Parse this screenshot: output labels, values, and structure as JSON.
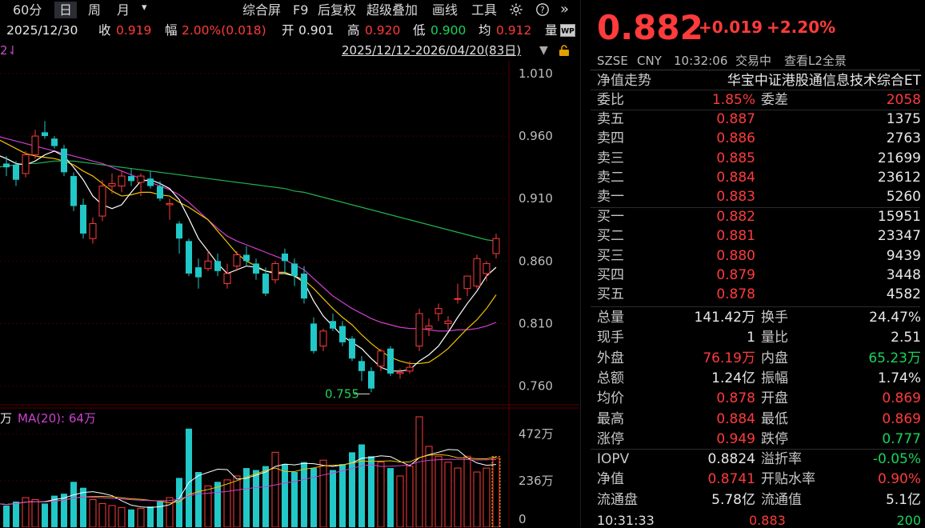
{
  "toolbar": {
    "periods": [
      {
        "label": "60分",
        "active": false
      },
      {
        "label": "日",
        "active": true
      },
      {
        "label": "周",
        "active": false
      },
      {
        "label": "月",
        "active": false
      }
    ],
    "right_items": [
      "综合屏",
      "F9",
      "后复权",
      "超级叠加",
      "画线",
      "工具"
    ]
  },
  "info": {
    "date": "2025/12/30",
    "close_label": "收",
    "close": "0.919",
    "range_label": "幅",
    "range": "2.00%(0.018)",
    "open_label": "开",
    "open": "0.901",
    "high_label": "高",
    "high": "0.920",
    "low_label": "低",
    "low": "0.900",
    "avg_label": "均",
    "avg": "0.912",
    "vol_label": "量"
  },
  "range_row": {
    "left_marker": "2⇃",
    "date_range": "2025/12/12-2026/04/20(83日)"
  },
  "volume_legend": {
    "prefix": "万",
    "ma": "MA(20): 64万"
  },
  "colors": {
    "up": "#ff3b3b",
    "down": "#22c7c7",
    "ma5": "#ffffff",
    "ma10": "#f0c000",
    "ma20": "#d040d0",
    "ma60": "#20b050",
    "grid": "#3a0000"
  },
  "chart_data": {
    "type": "candlestick",
    "y_ticks": [
      "1.010",
      "0.960",
      "0.910",
      "0.860",
      "0.810",
      "0.760"
    ],
    "ylim": [
      0.745,
      1.017
    ],
    "low_annotation": "0.755",
    "volume_ticks": [
      "472万",
      "236万",
      "0"
    ],
    "volume_ylim": [
      0,
      560
    ],
    "candles": [
      {
        "o": 0.94,
        "h": 0.945,
        "l": 0.932,
        "c": 0.938
      },
      {
        "o": 0.938,
        "h": 0.944,
        "l": 0.928,
        "c": 0.935
      },
      {
        "o": 0.937,
        "h": 0.94,
        "l": 0.92,
        "c": 0.925
      },
      {
        "o": 0.93,
        "h": 0.948,
        "l": 0.927,
        "c": 0.945
      },
      {
        "o": 0.945,
        "h": 0.965,
        "l": 0.942,
        "c": 0.96
      },
      {
        "o": 0.963,
        "h": 0.972,
        "l": 0.958,
        "c": 0.96
      },
      {
        "o": 0.958,
        "h": 0.96,
        "l": 0.95,
        "c": 0.952
      },
      {
        "o": 0.95,
        "h": 0.953,
        "l": 0.928,
        "c": 0.931
      },
      {
        "o": 0.928,
        "h": 0.931,
        "l": 0.9,
        "c": 0.904
      },
      {
        "o": 0.905,
        "h": 0.91,
        "l": 0.878,
        "c": 0.882
      },
      {
        "o": 0.878,
        "h": 0.895,
        "l": 0.874,
        "c": 0.89
      },
      {
        "o": 0.896,
        "h": 0.925,
        "l": 0.892,
        "c": 0.92
      },
      {
        "o": 0.92,
        "h": 0.93,
        "l": 0.914,
        "c": 0.922
      },
      {
        "o": 0.92,
        "h": 0.932,
        "l": 0.915,
        "c": 0.928
      },
      {
        "o": 0.928,
        "h": 0.934,
        "l": 0.92,
        "c": 0.924
      },
      {
        "o": 0.923,
        "h": 0.93,
        "l": 0.912,
        "c": 0.928
      },
      {
        "o": 0.926,
        "h": 0.932,
        "l": 0.918,
        "c": 0.92
      },
      {
        "o": 0.92,
        "h": 0.924,
        "l": 0.908,
        "c": 0.91
      },
      {
        "o": 0.905,
        "h": 0.91,
        "l": 0.893,
        "c": 0.906
      },
      {
        "o": 0.89,
        "h": 0.892,
        "l": 0.866,
        "c": 0.878
      },
      {
        "o": 0.876,
        "h": 0.878,
        "l": 0.848,
        "c": 0.85
      },
      {
        "o": 0.855,
        "h": 0.862,
        "l": 0.838,
        "c": 0.847
      },
      {
        "o": 0.854,
        "h": 0.868,
        "l": 0.852,
        "c": 0.86
      },
      {
        "o": 0.86,
        "h": 0.866,
        "l": 0.848,
        "c": 0.852
      },
      {
        "o": 0.842,
        "h": 0.858,
        "l": 0.838,
        "c": 0.85
      },
      {
        "o": 0.856,
        "h": 0.868,
        "l": 0.852,
        "c": 0.865
      },
      {
        "o": 0.865,
        "h": 0.872,
        "l": 0.856,
        "c": 0.86
      },
      {
        "o": 0.858,
        "h": 0.862,
        "l": 0.845,
        "c": 0.85
      },
      {
        "o": 0.85,
        "h": 0.855,
        "l": 0.832,
        "c": 0.834
      },
      {
        "o": 0.845,
        "h": 0.86,
        "l": 0.842,
        "c": 0.858
      },
      {
        "o": 0.866,
        "h": 0.87,
        "l": 0.85,
        "c": 0.86
      },
      {
        "o": 0.858,
        "h": 0.862,
        "l": 0.84,
        "c": 0.848
      },
      {
        "o": 0.85,
        "h": 0.856,
        "l": 0.826,
        "c": 0.83
      },
      {
        "o": 0.81,
        "h": 0.815,
        "l": 0.786,
        "c": 0.788
      },
      {
        "o": 0.792,
        "h": 0.806,
        "l": 0.788,
        "c": 0.804
      },
      {
        "o": 0.812,
        "h": 0.818,
        "l": 0.804,
        "c": 0.806
      },
      {
        "o": 0.808,
        "h": 0.812,
        "l": 0.792,
        "c": 0.795
      },
      {
        "o": 0.798,
        "h": 0.8,
        "l": 0.78,
        "c": 0.782
      },
      {
        "o": 0.78,
        "h": 0.784,
        "l": 0.764,
        "c": 0.772
      },
      {
        "o": 0.772,
        "h": 0.775,
        "l": 0.755,
        "c": 0.758
      },
      {
        "o": 0.776,
        "h": 0.79,
        "l": 0.772,
        "c": 0.788
      },
      {
        "o": 0.79,
        "h": 0.792,
        "l": 0.768,
        "c": 0.77
      },
      {
        "o": 0.77,
        "h": 0.774,
        "l": 0.766,
        "c": 0.771
      },
      {
        "o": 0.772,
        "h": 0.78,
        "l": 0.77,
        "c": 0.775
      },
      {
        "o": 0.792,
        "h": 0.822,
        "l": 0.788,
        "c": 0.818
      },
      {
        "o": 0.806,
        "h": 0.814,
        "l": 0.8,
        "c": 0.808
      },
      {
        "o": 0.818,
        "h": 0.826,
        "l": 0.812,
        "c": 0.822
      },
      {
        "o": 0.81,
        "h": 0.816,
        "l": 0.805,
        "c": 0.812
      },
      {
        "o": 0.83,
        "h": 0.842,
        "l": 0.826,
        "c": 0.83
      },
      {
        "o": 0.838,
        "h": 0.846,
        "l": 0.832,
        "c": 0.848
      },
      {
        "o": 0.84,
        "h": 0.865,
        "l": 0.838,
        "c": 0.862
      },
      {
        "o": 0.85,
        "h": 0.86,
        "l": 0.844,
        "c": 0.858
      },
      {
        "o": 0.866,
        "h": 0.882,
        "l": 0.862,
        "c": 0.878
      }
    ],
    "volumes": [
      120,
      110,
      130,
      150,
      140,
      120,
      160,
      170,
      230,
      200,
      140,
      120,
      110,
      100,
      90,
      95,
      105,
      130,
      150,
      250,
      500,
      280,
      210,
      230,
      240,
      260,
      300,
      290,
      310,
      380,
      320,
      280,
      330,
      300,
      340,
      290,
      320,
      380,
      420,
      360,
      330,
      300,
      260,
      310,
      560,
      410,
      360,
      330,
      300,
      360,
      280,
      300,
      350
    ],
    "ma5": [
      0.945,
      0.942,
      0.938,
      0.937,
      0.94,
      0.945,
      0.948,
      0.944,
      0.935,
      0.925,
      0.912,
      0.905,
      0.902,
      0.905,
      0.915,
      0.924,
      0.925,
      0.922,
      0.918,
      0.909,
      0.894,
      0.878,
      0.868,
      0.858,
      0.85,
      0.853,
      0.856,
      0.855,
      0.852,
      0.85,
      0.85,
      0.848,
      0.843,
      0.828,
      0.816,
      0.808,
      0.8,
      0.795,
      0.79,
      0.782,
      0.775,
      0.772,
      0.772,
      0.773,
      0.78,
      0.785,
      0.792,
      0.803,
      0.815,
      0.826,
      0.836,
      0.848,
      0.855
    ],
    "ma10": [
      0.958,
      0.954,
      0.95,
      0.946,
      0.944,
      0.943,
      0.942,
      0.94,
      0.937,
      0.932,
      0.928,
      0.922,
      0.916,
      0.912,
      0.913,
      0.915,
      0.915,
      0.913,
      0.912,
      0.907,
      0.903,
      0.898,
      0.893,
      0.884,
      0.875,
      0.866,
      0.86,
      0.856,
      0.852,
      0.851,
      0.851,
      0.848,
      0.845,
      0.838,
      0.83,
      0.822,
      0.815,
      0.809,
      0.801,
      0.794,
      0.788,
      0.783,
      0.78,
      0.778,
      0.778,
      0.779,
      0.784,
      0.79,
      0.798,
      0.806,
      0.813,
      0.822,
      0.833
    ],
    "ma20": [
      0.96,
      0.958,
      0.956,
      0.954,
      0.952,
      0.95,
      0.948,
      0.946,
      0.944,
      0.942,
      0.94,
      0.938,
      0.935,
      0.932,
      0.929,
      0.926,
      0.923,
      0.92,
      0.917,
      0.913,
      0.907,
      0.9,
      0.893,
      0.886,
      0.88,
      0.876,
      0.873,
      0.87,
      0.867,
      0.864,
      0.861,
      0.857,
      0.853,
      0.846,
      0.839,
      0.832,
      0.827,
      0.822,
      0.818,
      0.814,
      0.811,
      0.809,
      0.807,
      0.806,
      0.806,
      0.805,
      0.804,
      0.804,
      0.805,
      0.805,
      0.806,
      0.808,
      0.811
    ],
    "ma60": [
      0.935,
      0.936,
      0.937,
      0.938,
      0.938,
      0.939,
      0.94,
      0.94,
      0.94,
      0.939,
      0.938,
      0.937,
      0.936,
      0.935,
      0.934,
      0.933,
      0.932,
      0.931,
      0.93,
      0.929,
      0.928,
      0.927,
      0.926,
      0.925,
      0.924,
      0.923,
      0.922,
      0.921,
      0.92,
      0.919,
      0.918,
      0.916,
      0.915,
      0.913,
      0.911,
      0.909,
      0.907,
      0.905,
      0.903,
      0.901,
      0.899,
      0.897,
      0.895,
      0.893,
      0.891,
      0.889,
      0.887,
      0.885,
      0.883,
      0.881,
      0.879,
      0.877,
      0.876
    ]
  },
  "quote": {
    "price": "0.882",
    "change": "+0.019",
    "change_pct": "+2.20%",
    "exchange": "SZSE",
    "currency": "CNY",
    "time": "10:32:06",
    "status": "交易中",
    "l2_link": "查看L2全景",
    "nav_label": "净值走势",
    "fund_name": "华宝中证港股通信息技术综合ET",
    "weibi_label": "委比",
    "weibi": "1.85%",
    "weicha_label": "委差",
    "weicha": "2058",
    "asks": [
      {
        "label": "卖五",
        "price": "0.887",
        "vol": "1375"
      },
      {
        "label": "卖四",
        "price": "0.886",
        "vol": "2763"
      },
      {
        "label": "卖三",
        "price": "0.885",
        "vol": "21699"
      },
      {
        "label": "卖二",
        "price": "0.884",
        "vol": "23612"
      },
      {
        "label": "卖一",
        "price": "0.883",
        "vol": "5260"
      }
    ],
    "bids": [
      {
        "label": "买一",
        "price": "0.882",
        "vol": "15951"
      },
      {
        "label": "买二",
        "price": "0.881",
        "vol": "23347"
      },
      {
        "label": "买三",
        "price": "0.880",
        "vol": "9439"
      },
      {
        "label": "买四",
        "price": "0.879",
        "vol": "3448"
      },
      {
        "label": "买五",
        "price": "0.878",
        "vol": "4582"
      }
    ],
    "stats": [
      {
        "l1": "总量",
        "v1": "141.42万",
        "c1": "white",
        "l2": "换手",
        "v2": "24.47%",
        "c2": "white"
      },
      {
        "l1": "现手",
        "v1": "1",
        "c1": "white",
        "l2": "量比",
        "v2": "2.51",
        "c2": "white"
      },
      {
        "l1": "外盘",
        "v1": "76.19万",
        "c1": "red",
        "l2": "内盘",
        "v2": "65.23万",
        "c2": "green"
      },
      {
        "l1": "总额",
        "v1": "1.24亿",
        "c1": "white",
        "l2": "振幅",
        "v2": "1.74%",
        "c2": "white"
      },
      {
        "l1": "均价",
        "v1": "0.878",
        "c1": "red",
        "l2": "开盘",
        "v2": "0.869",
        "c2": "red"
      },
      {
        "l1": "最高",
        "v1": "0.884",
        "c1": "red",
        "l2": "最低",
        "v2": "0.869",
        "c2": "red"
      },
      {
        "l1": "涨停",
        "v1": "0.949",
        "c1": "red",
        "l2": "跌停",
        "v2": "0.777",
        "c2": "green"
      }
    ],
    "stats2": [
      {
        "l1": "IOPV",
        "v1": "0.8824",
        "c1": "white",
        "l2": "溢折率",
        "v2": "-0.05%",
        "c2": "green"
      },
      {
        "l1": "净值",
        "v1": "0.8741",
        "c1": "red",
        "l2": "开贴水率",
        "v2": "0.90%",
        "c2": "red"
      },
      {
        "l1": "流通盘",
        "v1": "5.78亿",
        "c1": "white",
        "l2": "流通值",
        "v2": "5.1亿",
        "c2": "white"
      }
    ],
    "last_tick": {
      "time": "10:31:33",
      "price": "0.883",
      "vol": "200"
    }
  }
}
